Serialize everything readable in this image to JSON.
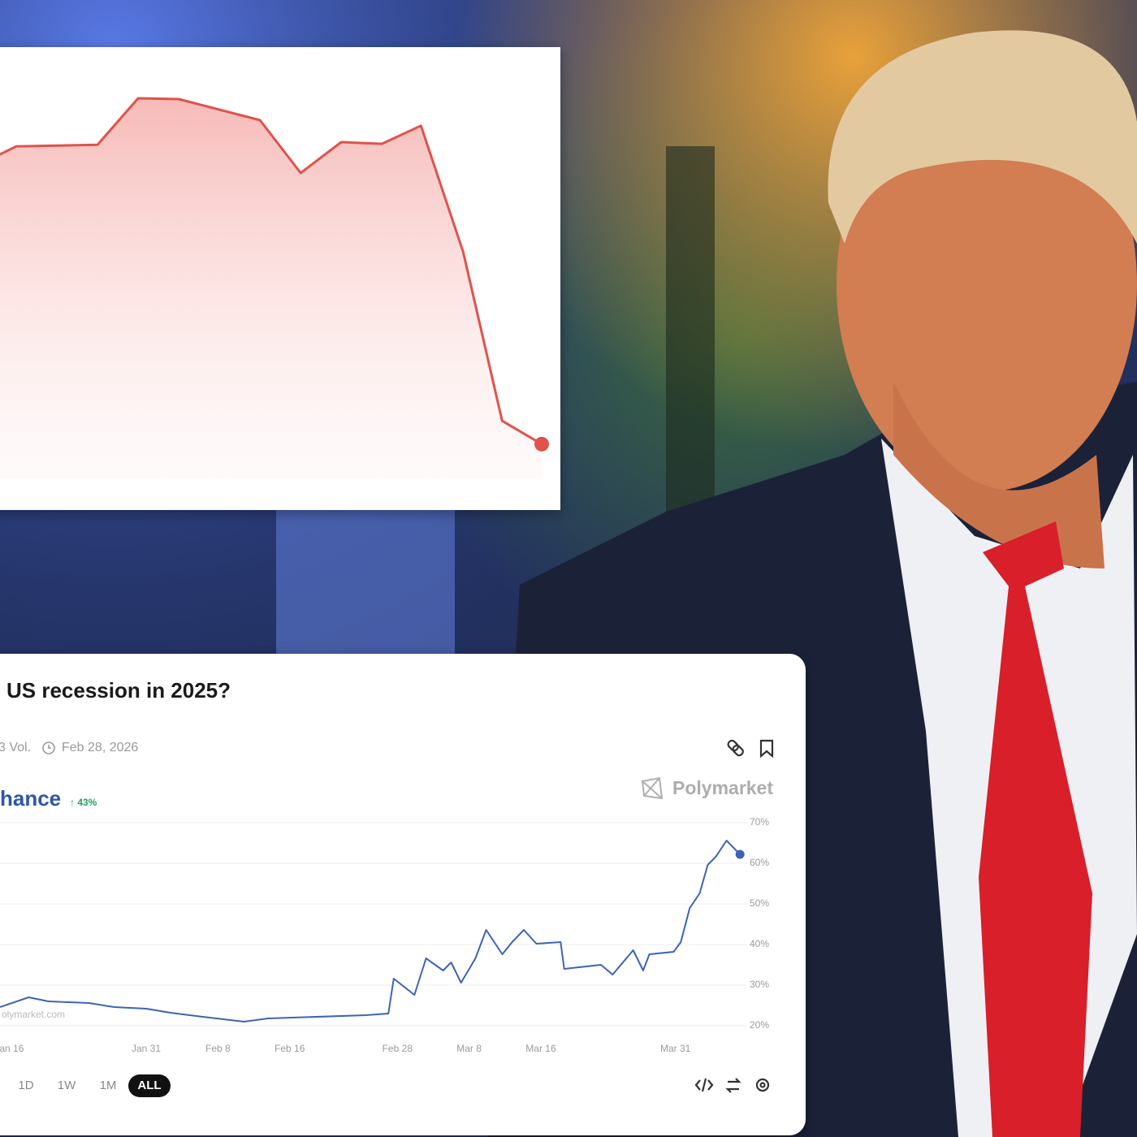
{
  "chart_data": [
    {
      "type": "line",
      "fill": true,
      "x": [
        0,
        3,
        18,
        25.5,
        33,
        48,
        55.5,
        63,
        70.5,
        77.7,
        85.5,
        92.7,
        100
      ],
      "xlim": [
        0,
        100
      ],
      "ylim": [
        0,
        100
      ],
      "series": [
        {
          "color": "#e0524c",
          "values": [
            76.9,
            78.8,
            79.2,
            90.2,
            90,
            85,
            72.5,
            79.8,
            79.4,
            83.7,
            53.8,
            13.8,
            8.3
          ]
        }
      ]
    },
    {
      "type": "line",
      "title": "US recession in 2025?",
      "volume": "3 Vol.",
      "end_date": "Feb 28, 2026",
      "change": "↑ 43%",
      "brand": "Polymarket",
      "watermark": "olymarket.com",
      "grid": true,
      "x": [
        14.7,
        17.9,
        20.1,
        24.6,
        27.4,
        31,
        33.7,
        37.3,
        41.9,
        44.6,
        55.5,
        58,
        58.6,
        60.9,
        62.2,
        64.1,
        65,
        66.1,
        67.7,
        68.9,
        70.7,
        71.8,
        73.1,
        74.5,
        77.2,
        77.6,
        81.7,
        83,
        85.3,
        86.4,
        87.1,
        89.8,
        90.6,
        91.6,
        92.7,
        93.6,
        94.5,
        95.7,
        97.2
      ],
      "series": [
        {
          "name": "hance",
          "color": "#3d63b8",
          "values": [
            24.6,
            27,
            26,
            25.6,
            24.6,
            24.2,
            23.2,
            22.2,
            21,
            21.8,
            22.6,
            23,
            31.6,
            27.6,
            36.6,
            33.6,
            35.6,
            30.6,
            36.6,
            43.6,
            37.6,
            40.6,
            43.6,
            40.2,
            40.6,
            34,
            35,
            32.6,
            38.6,
            33.6,
            37.6,
            38.2,
            40.6,
            49,
            52.6,
            59.6,
            61.6,
            65.6,
            62.2
          ]
        }
      ],
      "xlim": [
        14.7,
        98
      ],
      "ylim": [
        20,
        70
      ],
      "xticks": [
        {
          "value": 16,
          "label": "an 16"
        },
        {
          "value": 31,
          "label": "Jan 31"
        },
        {
          "value": 39,
          "label": "Feb 8"
        },
        {
          "value": 47,
          "label": "Feb 16"
        },
        {
          "value": 59,
          "label": "Feb 28"
        },
        {
          "value": 67,
          "label": "Mar 8"
        },
        {
          "value": 75,
          "label": "Mar 16"
        },
        {
          "value": 90,
          "label": "Mar 31"
        }
      ],
      "yticks": [
        {
          "value": 70,
          "label": "70%"
        },
        {
          "value": 60,
          "label": "60%"
        },
        {
          "value": 50,
          "label": "50%"
        },
        {
          "value": 40,
          "label": "40%"
        },
        {
          "value": 30,
          "label": "30%"
        },
        {
          "value": 20,
          "label": "20%"
        }
      ],
      "ranges": [
        "1D",
        "1W",
        "1M",
        "ALL"
      ]
    }
  ]
}
